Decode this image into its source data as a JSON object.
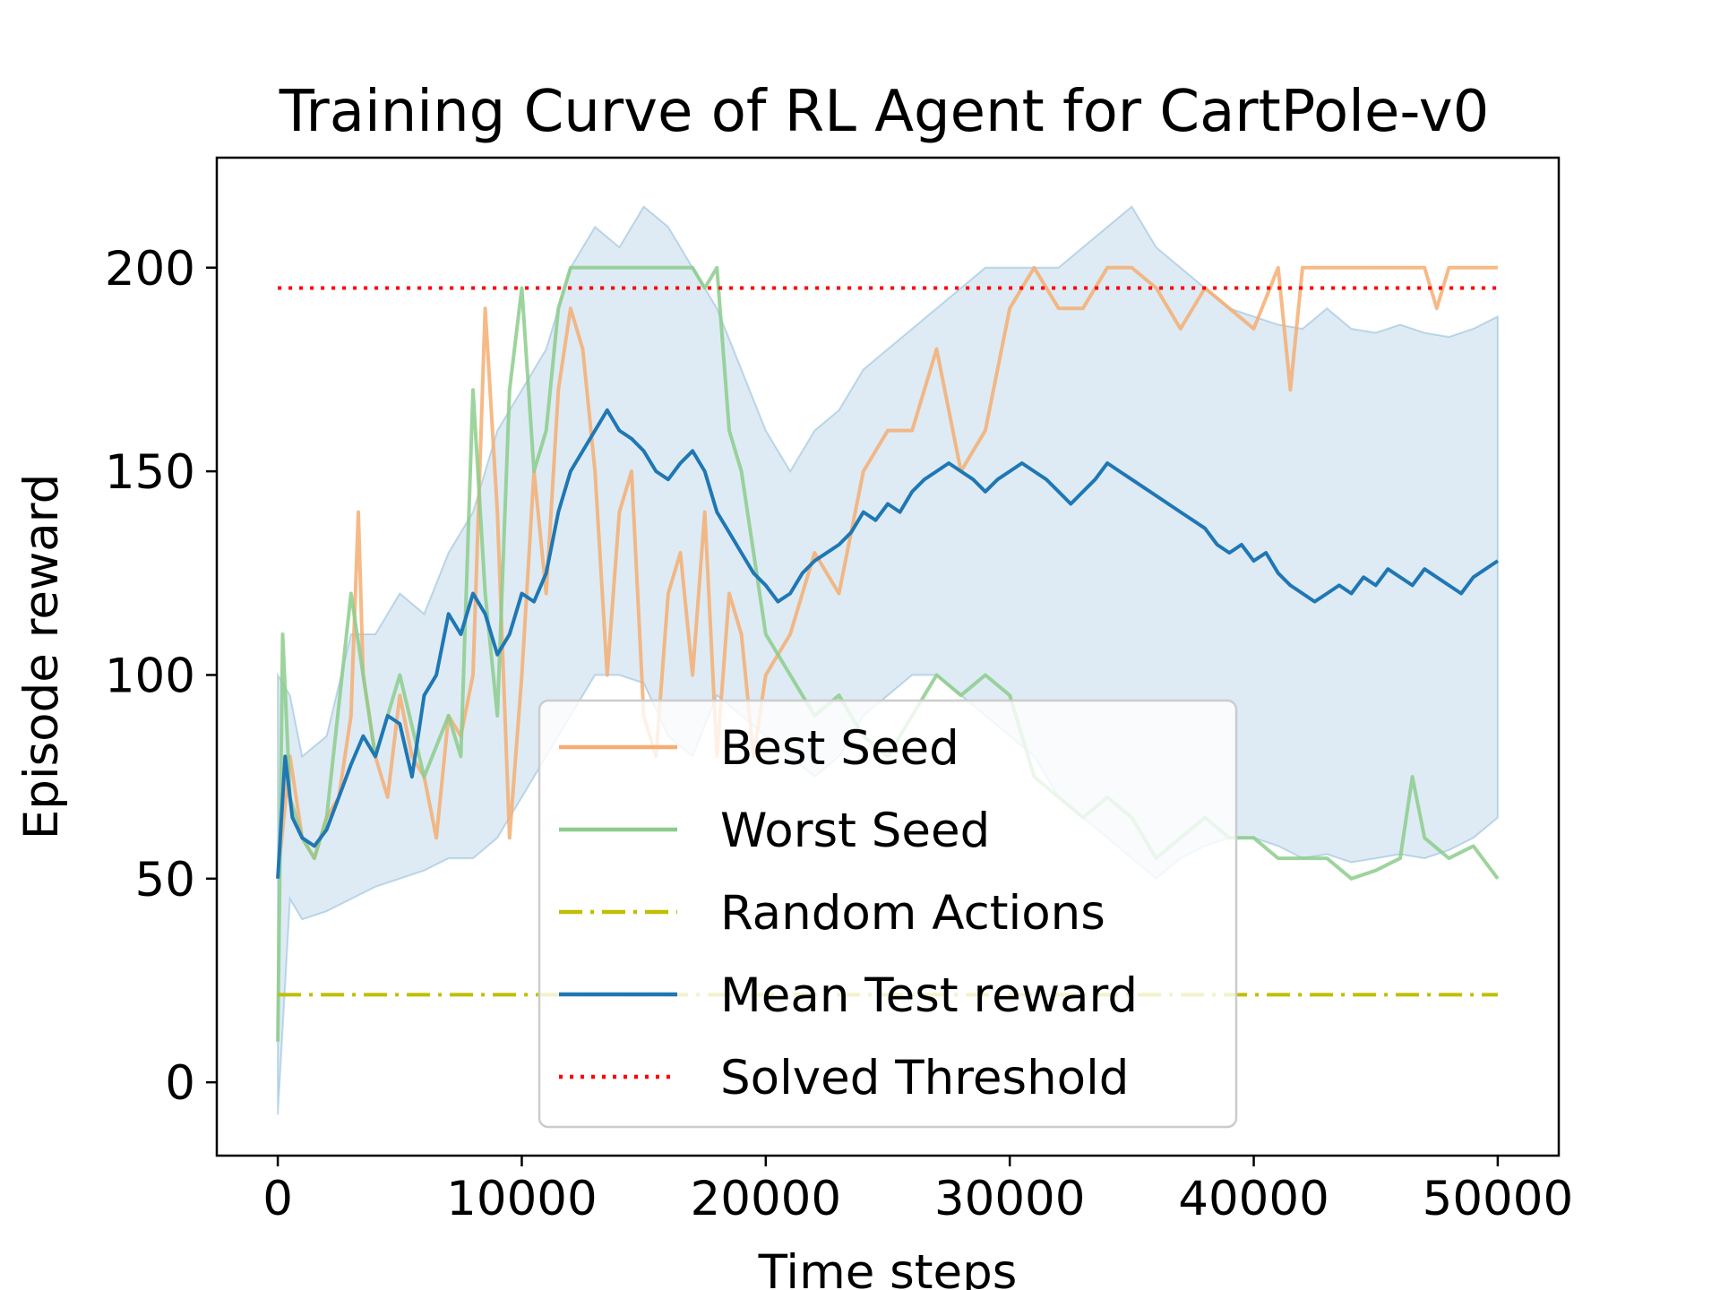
{
  "chart_data": {
    "type": "line",
    "title": "Training Curve of RL Agent for CartPole-v0",
    "xlabel": "Time steps",
    "ylabel": "Episode reward",
    "xlim": [
      -2500,
      52500
    ],
    "ylim": [
      -18,
      227
    ],
    "xticks": [
      0,
      10000,
      20000,
      30000,
      40000,
      50000
    ],
    "yticks": [
      0,
      50,
      100,
      150,
      200
    ],
    "grid": false,
    "legend_position": "lower-center",
    "series": [
      {
        "name": "Best Seed",
        "color": "#f5ae72",
        "style": "solid",
        "x": [
          0,
          500,
          1000,
          1500,
          2000,
          2500,
          3000,
          3300,
          3500,
          4000,
          4500,
          5000,
          5500,
          6000,
          6500,
          7000,
          7500,
          8000,
          8500,
          9000,
          9500,
          10000,
          10500,
          11000,
          11500,
          12000,
          12500,
          13000,
          13500,
          14000,
          14500,
          15000,
          15500,
          16000,
          16500,
          17000,
          17500,
          18000,
          18500,
          19000,
          19500,
          20000,
          21000,
          22000,
          23000,
          24000,
          25000,
          26000,
          27000,
          28000,
          29000,
          30000,
          31000,
          32000,
          33000,
          34000,
          35000,
          36000,
          37000,
          38000,
          39000,
          40000,
          41000,
          41500,
          42000,
          42500,
          43000,
          44000,
          45000,
          46000,
          47000,
          47500,
          48000,
          49000,
          50000
        ],
        "values": [
          50,
          80,
          60,
          55,
          65,
          70,
          90,
          140,
          100,
          80,
          70,
          95,
          80,
          75,
          60,
          90,
          85,
          100,
          190,
          140,
          60,
          100,
          150,
          120,
          170,
          190,
          180,
          150,
          100,
          140,
          150,
          90,
          80,
          120,
          130,
          100,
          140,
          80,
          120,
          110,
          80,
          100,
          110,
          130,
          120,
          150,
          160,
          160,
          180,
          150,
          160,
          190,
          200,
          190,
          190,
          200,
          200,
          195,
          185,
          195,
          190,
          185,
          200,
          170,
          200,
          200,
          200,
          200,
          200,
          200,
          200,
          190,
          200,
          200,
          200
        ]
      },
      {
        "name": "Worst Seed",
        "color": "#8ccc8c",
        "style": "solid",
        "x": [
          0,
          200,
          500,
          1000,
          1500,
          2000,
          3000,
          4000,
          5000,
          6000,
          7000,
          7500,
          8000,
          8500,
          9000,
          9500,
          10000,
          10500,
          11000,
          11500,
          12000,
          13000,
          14000,
          15000,
          16000,
          17000,
          17500,
          18000,
          18500,
          19000,
          20000,
          21000,
          22000,
          23000,
          24000,
          25000,
          26000,
          27000,
          28000,
          29000,
          30000,
          31000,
          32000,
          33000,
          34000,
          35000,
          36000,
          37000,
          38000,
          39000,
          40000,
          41000,
          42000,
          43000,
          44000,
          45000,
          46000,
          46500,
          47000,
          48000,
          49000,
          50000
        ],
        "values": [
          10,
          110,
          70,
          60,
          55,
          65,
          120,
          80,
          100,
          75,
          90,
          80,
          170,
          120,
          90,
          170,
          195,
          150,
          160,
          190,
          200,
          200,
          200,
          200,
          200,
          200,
          195,
          200,
          160,
          150,
          110,
          100,
          90,
          95,
          85,
          80,
          90,
          100,
          95,
          100,
          95,
          75,
          70,
          65,
          70,
          65,
          55,
          60,
          65,
          60,
          60,
          55,
          55,
          55,
          50,
          52,
          55,
          75,
          60,
          55,
          58,
          50
        ]
      },
      {
        "name": "Random Actions",
        "color": "#bfbf00",
        "style": "dashdot",
        "x": [
          0,
          50000
        ],
        "values": [
          21.5,
          21.5
        ]
      },
      {
        "name": "Mean Test reward",
        "color": "#1f77b4",
        "style": "solid",
        "x": [
          0,
          300,
          600,
          1000,
          1500,
          2000,
          2500,
          3000,
          3500,
          4000,
          4500,
          5000,
          5500,
          6000,
          6500,
          7000,
          7500,
          8000,
          8500,
          9000,
          9500,
          10000,
          10500,
          11000,
          11500,
          12000,
          12500,
          13000,
          13500,
          14000,
          14500,
          15000,
          15500,
          16000,
          16500,
          17000,
          17500,
          18000,
          18500,
          19000,
          19500,
          20000,
          20500,
          21000,
          21500,
          22000,
          22500,
          23000,
          23500,
          24000,
          24500,
          25000,
          25500,
          26000,
          26500,
          27000,
          27500,
          28000,
          28500,
          29000,
          29500,
          30000,
          30500,
          31000,
          31500,
          32000,
          32500,
          33000,
          33500,
          34000,
          34500,
          35000,
          35500,
          36000,
          36500,
          37000,
          37500,
          38000,
          38500,
          39000,
          39500,
          40000,
          40500,
          41000,
          41500,
          42000,
          42500,
          43000,
          43500,
          44000,
          44500,
          45000,
          45500,
          46000,
          46500,
          47000,
          47500,
          48000,
          48500,
          49000,
          49500,
          50000
        ],
        "values": [
          50,
          80,
          65,
          60,
          58,
          62,
          70,
          78,
          85,
          80,
          90,
          88,
          75,
          95,
          100,
          115,
          110,
          120,
          115,
          105,
          110,
          120,
          118,
          125,
          140,
          150,
          155,
          160,
          165,
          160,
          158,
          155,
          150,
          148,
          152,
          155,
          150,
          140,
          135,
          130,
          125,
          122,
          118,
          120,
          125,
          128,
          130,
          132,
          135,
          140,
          138,
          142,
          140,
          145,
          148,
          150,
          152,
          150,
          148,
          145,
          148,
          150,
          152,
          150,
          148,
          145,
          142,
          145,
          148,
          152,
          150,
          148,
          146,
          144,
          142,
          140,
          138,
          136,
          132,
          130,
          132,
          128,
          130,
          125,
          122,
          120,
          118,
          120,
          122,
          120,
          124,
          122,
          126,
          124,
          122,
          126,
          124,
          122,
          120,
          124,
          126,
          128
        ]
      },
      {
        "name": "Solved Threshold",
        "color": "#ff0000",
        "style": "dotted",
        "x": [
          0,
          50000
        ],
        "values": [
          195,
          195
        ]
      }
    ],
    "band": {
      "color": "#1f77b4",
      "x": [
        0,
        500,
        1000,
        2000,
        3000,
        4000,
        5000,
        6000,
        7000,
        8000,
        9000,
        10000,
        11000,
        12000,
        13000,
        14000,
        15000,
        16000,
        17000,
        18000,
        19000,
        20000,
        21000,
        22000,
        23000,
        24000,
        25000,
        26000,
        27000,
        28000,
        29000,
        30000,
        31000,
        32000,
        33000,
        34000,
        35000,
        36000,
        37000,
        38000,
        39000,
        40000,
        41000,
        42000,
        43000,
        44000,
        45000,
        46000,
        47000,
        48000,
        49000,
        50000
      ],
      "upper": [
        100,
        95,
        80,
        85,
        110,
        110,
        120,
        115,
        130,
        140,
        160,
        170,
        180,
        200,
        210,
        205,
        215,
        210,
        200,
        190,
        175,
        160,
        150,
        160,
        165,
        175,
        180,
        185,
        190,
        195,
        200,
        200,
        200,
        200,
        205,
        210,
        215,
        205,
        200,
        195,
        190,
        188,
        186,
        185,
        190,
        185,
        184,
        186,
        184,
        183,
        185,
        188
      ],
      "lower": [
        -8,
        45,
        40,
        42,
        45,
        48,
        50,
        52,
        55,
        55,
        60,
        70,
        80,
        90,
        100,
        100,
        98,
        85,
        80,
        95,
        90,
        85,
        80,
        75,
        80,
        90,
        95,
        100,
        100,
        95,
        90,
        85,
        80,
        70,
        65,
        60,
        55,
        50,
        55,
        58,
        60,
        60,
        58,
        55,
        56,
        54,
        55,
        56,
        55,
        57,
        60,
        65
      ]
    }
  }
}
